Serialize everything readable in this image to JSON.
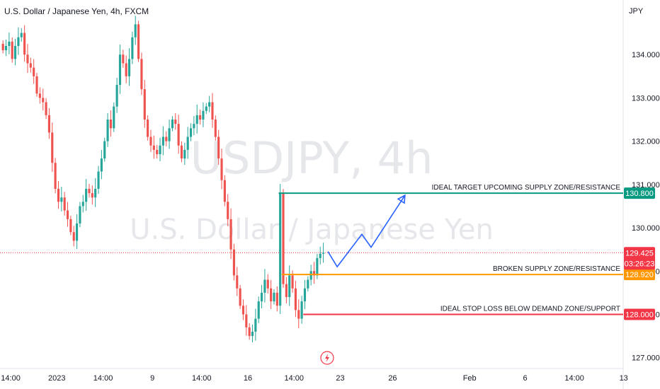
{
  "header": {
    "title": "U.S. Dollar / Japanese Yen, 4h, FXCM"
  },
  "watermark": {
    "symbol": "USDJPY, 4h",
    "description": "U.S. Dollar / Japanese Yen"
  },
  "colors": {
    "up": "#26a69a",
    "down": "#ef5350",
    "target": "#089981",
    "broken": "#ff9800",
    "stop": "#f23645",
    "projection": "#2962ff",
    "price_tag": "#f23645"
  },
  "chart_data": {
    "type": "candlestick",
    "currency": "JPY",
    "ylim": [
      126.75,
      135.0
    ],
    "y_ticks": [
      {
        "value": 127.0,
        "label": "127.000"
      },
      {
        "value": 128.0,
        "label": "128.000"
      },
      {
        "value": 129.0,
        "label": "129.000"
      },
      {
        "value": 130.0,
        "label": "130.000"
      },
      {
        "value": 131.0,
        "label": "131.000"
      },
      {
        "value": 132.0,
        "label": "132.000"
      },
      {
        "value": 133.0,
        "label": "133.000"
      },
      {
        "value": 134.0,
        "label": "134.000"
      }
    ],
    "x_ticks": [
      {
        "bar": 3,
        "label": "14:00"
      },
      {
        "bar": 18,
        "label": "2023"
      },
      {
        "bar": 33,
        "label": "14:00"
      },
      {
        "bar": 49,
        "label": "9"
      },
      {
        "bar": 65,
        "label": "14:00"
      },
      {
        "bar": 80,
        "label": "16"
      },
      {
        "bar": 95,
        "label": "14:00"
      },
      {
        "bar": 110,
        "label": "23"
      },
      {
        "bar": 127,
        "label": "26"
      },
      {
        "bar": 152,
        "label": "Feb"
      },
      {
        "bar": 170,
        "label": "6"
      },
      {
        "bar": 186,
        "label": "14:00"
      },
      {
        "bar": 202,
        "label": "13"
      }
    ],
    "levels": [
      {
        "name": "target",
        "value": 130.8,
        "label": "130.800",
        "text": "IDEAL TARGET UPCOMING SUPPLY ZONE/RESISTANCE",
        "start_bar": 90
      },
      {
        "name": "broken",
        "value": 128.92,
        "label": "128.920",
        "text": "BROKEN SUPPLY ZONE/RESISTANCE",
        "start_bar": 91
      },
      {
        "name": "stop",
        "value": 128.0,
        "label": "128.000",
        "text": "IDEAL STOP LOSS BELOW DEMAND ZONE/SUPPORT",
        "start_bar": 98
      }
    ],
    "current_price": {
      "value": 129.425,
      "label": "129.425",
      "countdown": "03:26:23"
    },
    "projection_path": [
      {
        "bar": 106,
        "value": 129.45
      },
      {
        "bar": 109,
        "value": 129.1
      },
      {
        "bar": 117,
        "value": 129.85
      },
      {
        "bar": 120,
        "value": 129.55
      },
      {
        "bar": 131,
        "value": 130.75
      }
    ],
    "closes": [
      134.1,
      134.2,
      134.3,
      133.9,
      134.2,
      134.4,
      134.5,
      134.0,
      133.8,
      133.7,
      133.5,
      133.1,
      133.0,
      132.9,
      132.6,
      132.2,
      131.5,
      130.9,
      130.6,
      130.7,
      130.4,
      130.2,
      129.9,
      129.7,
      130.1,
      130.5,
      130.6,
      130.9,
      130.8,
      130.7,
      130.9,
      131.3,
      131.6,
      132.0,
      132.5,
      132.3,
      132.8,
      133.3,
      134.0,
      133.8,
      133.5,
      133.9,
      134.4,
      134.7,
      133.9,
      133.2,
      132.5,
      132.1,
      131.9,
      131.8,
      131.7,
      131.9,
      132.1,
      132.0,
      132.3,
      132.5,
      132.4,
      131.9,
      131.6,
      131.8,
      132.1,
      132.3,
      132.4,
      132.6,
      132.5,
      132.7,
      132.8,
      132.9,
      132.5,
      132.1,
      131.6,
      131.1,
      130.6,
      130.2,
      129.5,
      128.9,
      128.6,
      128.2,
      128.0,
      127.7,
      127.5,
      127.6,
      127.9,
      128.3,
      128.5,
      128.8,
      128.6,
      128.3,
      128.5,
      128.2,
      130.8,
      128.7,
      128.4,
      128.9,
      128.6,
      128.1,
      127.9,
      128.3,
      128.6,
      128.8,
      129.0,
      128.9,
      129.3,
      129.4,
      129.425
    ]
  }
}
